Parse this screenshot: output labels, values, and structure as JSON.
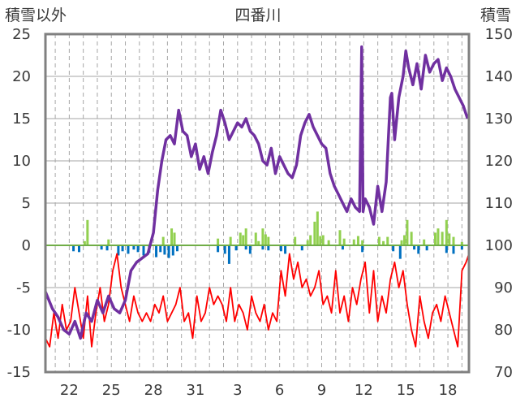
{
  "chart_data": {
    "type": "line",
    "title": "四番川",
    "ylabel_left": "積雪以外",
    "ylabel_right": "積雪",
    "y_left_range": [
      -15,
      25
    ],
    "y_left_ticks": [
      "25",
      "20",
      "15",
      "10",
      "5",
      "0",
      "-5",
      "-10",
      "-15"
    ],
    "y_right_range": [
      70,
      150
    ],
    "y_right_ticks": [
      "150",
      "140",
      "130",
      "120",
      "110",
      "100",
      "90",
      "80",
      "70"
    ],
    "x_range": [
      20.3,
      50.5
    ],
    "x_ticks": [
      {
        "x": 22,
        "label": "22"
      },
      {
        "x": 25,
        "label": "25"
      },
      {
        "x": 28,
        "label": "28"
      },
      {
        "x": 31,
        "label": "31"
      },
      {
        "x": 34,
        "label": "3"
      },
      {
        "x": 37,
        "label": "6"
      },
      {
        "x": 40,
        "label": "9"
      },
      {
        "x": 43,
        "label": "12"
      },
      {
        "x": 46,
        "label": "15"
      },
      {
        "x": 49,
        "label": "18"
      }
    ],
    "grid": true,
    "colors": {
      "snow": "#7030a0",
      "temperature": "#ff0000",
      "precip": "#92d050",
      "negative": "#0070c0",
      "zero_line": "#70ad47",
      "frame": "#808080",
      "grid": "#a6a6a6"
    },
    "series": [
      {
        "key": "snow",
        "axis": "right",
        "style": "line",
        "x": [
          20.3,
          20.8,
          21.2,
          21.6,
          22.0,
          22.4,
          22.8,
          23.2,
          23.6,
          24.0,
          24.4,
          24.8,
          25.2,
          25.6,
          26.0,
          26.4,
          26.8,
          27.2,
          27.6,
          28.0,
          28.3,
          28.6,
          28.9,
          29.2,
          29.5,
          29.8,
          30.1,
          30.4,
          30.7,
          31.0,
          31.3,
          31.6,
          31.9,
          32.2,
          32.5,
          32.8,
          33.1,
          33.4,
          33.7,
          34.0,
          34.3,
          34.6,
          34.9,
          35.2,
          35.5,
          35.8,
          36.1,
          36.4,
          36.7,
          37.0,
          37.3,
          37.6,
          37.9,
          38.2,
          38.5,
          38.8,
          39.1,
          39.4,
          39.7,
          40.0,
          40.3,
          40.6,
          40.9,
          41.2,
          41.5,
          41.8,
          42.1,
          42.4,
          42.7,
          42.85,
          42.95,
          43.1,
          43.4,
          43.7,
          44.0,
          44.3,
          44.6,
          44.9,
          45.0,
          45.2,
          45.5,
          45.8,
          46.0,
          46.2,
          46.5,
          46.8,
          47.1,
          47.4,
          47.7,
          48.0,
          48.3,
          48.6,
          48.9,
          49.2,
          49.5,
          49.8,
          50.1,
          50.4
        ],
        "values": [
          89,
          85,
          83,
          80,
          79,
          82,
          78,
          84,
          82,
          87,
          84,
          88,
          85,
          84,
          87,
          94,
          96,
          97,
          98,
          103,
          113,
          120,
          125,
          126,
          124,
          132,
          127,
          126,
          121,
          124,
          118,
          121,
          117,
          122,
          126,
          132,
          129,
          125,
          127,
          129,
          128,
          130,
          127,
          126,
          124,
          120,
          119,
          123,
          117,
          121,
          119,
          117,
          116,
          119,
          126,
          129,
          131,
          128,
          126,
          124,
          123,
          117,
          114,
          112,
          110,
          108,
          111,
          109,
          108,
          147,
          108,
          111,
          109,
          105,
          114,
          108,
          115,
          135,
          136,
          125,
          135,
          140,
          146,
          142,
          138,
          143,
          137,
          145,
          141,
          143,
          144,
          139,
          142,
          140,
          137,
          135,
          133,
          130
        ]
      },
      {
        "key": "temperature",
        "axis": "left",
        "style": "line",
        "x": [
          20.3,
          20.6,
          20.9,
          21.2,
          21.5,
          21.8,
          22.1,
          22.4,
          22.7,
          23.0,
          23.3,
          23.6,
          23.9,
          24.2,
          24.5,
          24.8,
          25.1,
          25.4,
          25.7,
          26.0,
          26.3,
          26.6,
          26.9,
          27.2,
          27.5,
          27.8,
          28.1,
          28.4,
          28.7,
          29.0,
          29.3,
          29.6,
          29.9,
          30.2,
          30.5,
          30.8,
          31.1,
          31.4,
          31.7,
          32.0,
          32.3,
          32.6,
          32.9,
          33.2,
          33.5,
          33.8,
          34.1,
          34.4,
          34.7,
          35.0,
          35.3,
          35.6,
          35.9,
          36.2,
          36.5,
          36.8,
          37.1,
          37.4,
          37.7,
          38.0,
          38.3,
          38.6,
          38.9,
          39.2,
          39.5,
          39.8,
          40.1,
          40.4,
          40.7,
          41.0,
          41.3,
          41.6,
          41.9,
          42.2,
          42.5,
          42.8,
          43.1,
          43.4,
          43.7,
          44.0,
          44.3,
          44.6,
          44.9,
          45.2,
          45.5,
          45.8,
          46.1,
          46.4,
          46.7,
          47.0,
          47.3,
          47.6,
          47.9,
          48.2,
          48.5,
          48.8,
          49.1,
          49.4,
          49.7,
          50.0,
          50.3,
          50.5
        ],
        "values": [
          -11,
          -12,
          -8,
          -11,
          -7,
          -10,
          -9,
          -5,
          -8,
          -11,
          -6,
          -12,
          -8,
          -5,
          -9,
          -7,
          -3,
          -1,
          -5,
          -7,
          -9,
          -6,
          -8,
          -9,
          -8,
          -9,
          -7,
          -8,
          -6,
          -9,
          -8,
          -7,
          -5,
          -9,
          -8,
          -11,
          -6,
          -9,
          -8,
          -5,
          -7,
          -6,
          -7,
          -9,
          -5,
          -9,
          -7,
          -8,
          -10,
          -6,
          -8,
          -9,
          -7,
          -10,
          -8,
          -9,
          -3,
          -6,
          -1,
          -4,
          -2,
          -5,
          -4,
          -6,
          -5,
          -3,
          -7,
          -6,
          -8,
          -3,
          -8,
          -6,
          -9,
          -5,
          -7,
          -4,
          -2,
          -8,
          -3,
          -9,
          -6,
          -8,
          -4,
          -2,
          -5,
          -3,
          -7,
          -10,
          -12,
          -6,
          -9,
          -11,
          -8,
          -7,
          -9,
          -6,
          -8,
          -10,
          -12,
          -3,
          -2,
          -1
        ]
      },
      {
        "key": "precip",
        "axis": "left",
        "style": "bars",
        "x": [
          23.1,
          23.3,
          24.8,
          28.7,
          29.3,
          29.5,
          32.6,
          33.5,
          34.2,
          34.4,
          34.6,
          35.3,
          35.5,
          35.8,
          36.0,
          36.2,
          38.1,
          39.0,
          39.2,
          39.5,
          39.7,
          39.9,
          40.1,
          40.5,
          41.3,
          41.6,
          42.3,
          42.6,
          42.9,
          44.1,
          44.4,
          44.7,
          45.7,
          45.9,
          46.1,
          46.4,
          47.3,
          48.1,
          48.3,
          48.6,
          48.9,
          49.1,
          49.4,
          50.0
        ],
        "values": [
          0.5,
          3,
          0.7,
          1,
          2,
          1.5,
          0.8,
          1,
          1.5,
          1.2,
          2,
          1.5,
          0.5,
          2,
          1.3,
          1,
          1,
          0.6,
          1.2,
          2.8,
          4,
          1.1,
          1.2,
          0.6,
          1.8,
          0.8,
          0.7,
          1.1,
          0.6,
          1,
          0.5,
          1,
          0.6,
          1.2,
          3,
          1.6,
          0.7,
          1.5,
          2,
          1.6,
          3,
          1.4,
          1,
          0.4
        ]
      },
      {
        "key": "negative",
        "axis": "left",
        "style": "bars",
        "x": [
          22.3,
          22.7,
          24.3,
          24.7,
          25.5,
          25.8,
          26.2,
          26.6,
          26.9,
          27.3,
          27.7,
          28.2,
          28.5,
          28.8,
          29.1,
          29.4,
          29.7,
          32.6,
          33.1,
          33.4,
          33.9,
          34.6,
          34.9,
          35.8,
          36.2,
          37.1,
          37.4,
          38.6,
          41.5,
          42.9,
          45.1,
          45.6,
          46.6,
          46.9,
          47.5,
          48.9,
          49.4,
          50.0
        ],
        "values": [
          -0.7,
          -0.8,
          -0.5,
          -0.6,
          -1.2,
          -0.7,
          -1,
          -0.5,
          -0.8,
          -1.2,
          -0.9,
          -1.4,
          -0.8,
          -1.1,
          -1.5,
          -1.2,
          -0.7,
          -0.8,
          -1,
          -2.2,
          -0.6,
          -0.5,
          -1,
          -0.5,
          -0.6,
          -0.7,
          -1,
          -0.6,
          -0.5,
          -0.8,
          -0.7,
          -1.6,
          -0.5,
          -1,
          -0.6,
          -0.9,
          -1,
          -0.5
        ]
      }
    ]
  }
}
